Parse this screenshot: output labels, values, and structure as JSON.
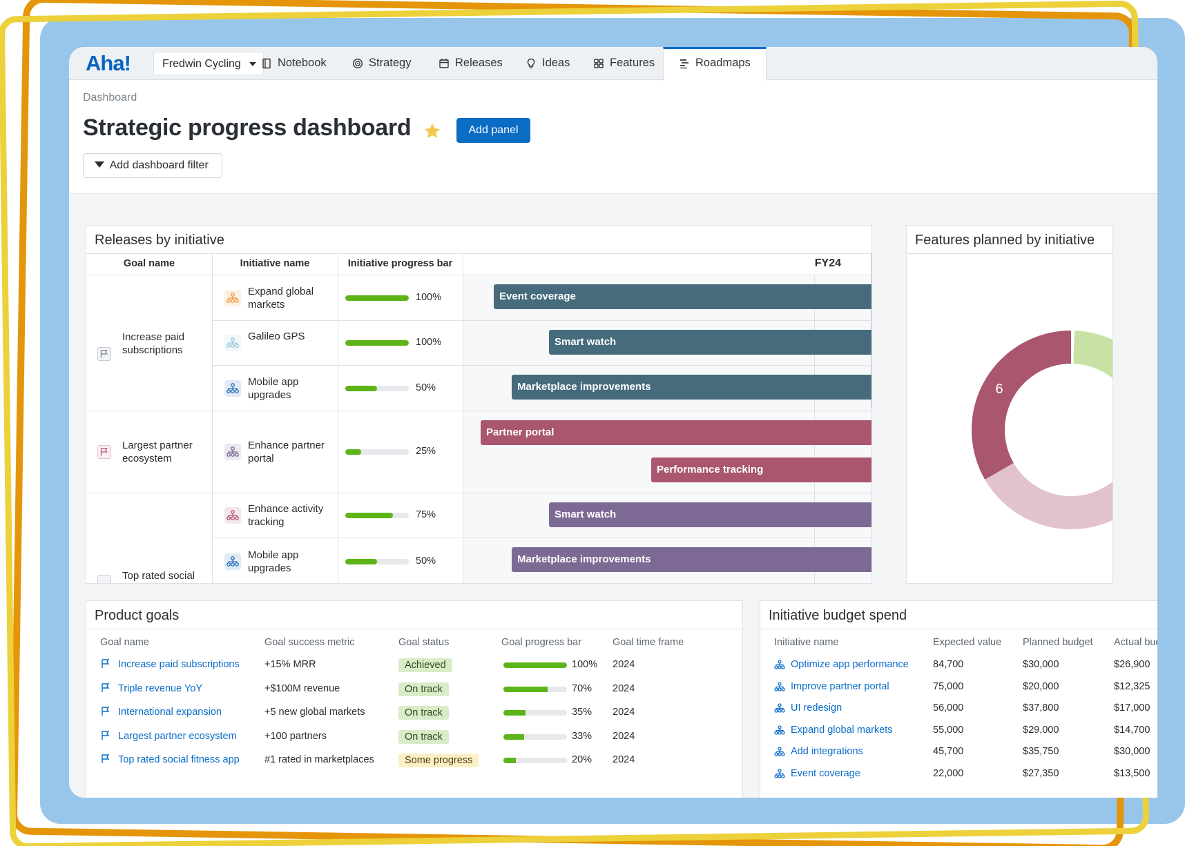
{
  "nav": {
    "logo": "Aha!",
    "workspace": "Fredwin Cycling",
    "items": [
      {
        "label": "Notebook",
        "icon": "notebook-icon"
      },
      {
        "label": "Strategy",
        "icon": "target-icon"
      },
      {
        "label": "Releases",
        "icon": "calendar-icon"
      },
      {
        "label": "Ideas",
        "icon": "lightbulb-icon"
      },
      {
        "label": "Features",
        "icon": "grid-icon"
      },
      {
        "label": "Roadmaps",
        "icon": "roadmap-icon",
        "active": true
      }
    ]
  },
  "header": {
    "breadcrumb": "Dashboard",
    "title": "Strategic progress dashboard",
    "add_panel_label": "Add panel",
    "filter_label": "Add dashboard filter"
  },
  "releases": {
    "title": "Releases by initiative",
    "headers": {
      "goal": "Goal name",
      "initiative": "Initiative name",
      "progress": "Initiative progress bar",
      "timeline": "FY24"
    },
    "goals": [
      {
        "name": "Increase paid subscriptions",
        "flag_color": "#7a8591"
      },
      {
        "name": "Largest partner ecosystem",
        "flag_color": "#b3566e"
      },
      {
        "name": "Top rated social",
        "flag_color": "#7a8591"
      }
    ],
    "rows": [
      {
        "initiative": "Expand global markets",
        "icon_color": "#e89b3c",
        "progress": 100,
        "progress_label": "100%",
        "bars": [
          {
            "label": "Event coverage",
            "color": "#456b7c"
          }
        ]
      },
      {
        "initiative": "Galileo GPS",
        "icon_color": "#9fc6d9",
        "progress": 100,
        "progress_label": "100%",
        "bars": [
          {
            "label": "Smart watch",
            "color": "#456b7c"
          }
        ]
      },
      {
        "initiative": "Mobile app upgrades",
        "icon_color": "#2a71b8",
        "progress": 50,
        "progress_label": "50%",
        "bars": [
          {
            "label": "Marketplace improvements",
            "color": "#456b7c"
          }
        ]
      },
      {
        "initiative": "Enhance partner portal",
        "icon_color": "#7a6890",
        "progress": 25,
        "progress_label": "25%",
        "bars": [
          {
            "label": "Partner portal",
            "color": "#a9566e"
          },
          {
            "label": "Performance tracking",
            "color": "#a9566e"
          }
        ]
      },
      {
        "initiative": "Enhance activity tracking",
        "icon_color": "#b3566e",
        "progress": 75,
        "progress_label": "75%",
        "bars": [
          {
            "label": "Smart watch",
            "color": "#7d6a94"
          }
        ]
      },
      {
        "initiative": "Mobile app upgrades",
        "icon_color": "#2a71b8",
        "progress": 50,
        "progress_label": "50%",
        "bars": [
          {
            "label": "Marketplace improvements",
            "color": "#7d6a94"
          }
        ]
      }
    ]
  },
  "features": {
    "title": "Features planned by initiative",
    "slices": [
      {
        "value": 5,
        "color": "#c8e1a4",
        "label": "5"
      },
      {
        "value": 6,
        "color": "#a9566e",
        "label": "6"
      },
      {
        "value": 5,
        "color": "#e2c2cc",
        "label": ""
      }
    ]
  },
  "goals_table": {
    "title": "Product goals",
    "headers": [
      "Goal name",
      "Goal success metric",
      "Goal status",
      "Goal progress bar",
      "Goal time frame"
    ],
    "rows": [
      {
        "name": "Increase paid subscriptions",
        "metric": "+15% MRR",
        "status": "Achieved",
        "status_kind": "green",
        "progress": 100,
        "progress_label": "100%",
        "timeframe": "2024"
      },
      {
        "name": "Triple revenue YoY",
        "metric": "+$100M revenue",
        "status": "On track",
        "status_kind": "green",
        "progress": 70,
        "progress_label": "70%",
        "timeframe": "2024"
      },
      {
        "name": "International expansion",
        "metric": "+5 new global markets",
        "status": "On track",
        "status_kind": "green",
        "progress": 35,
        "progress_label": "35%",
        "timeframe": "2024"
      },
      {
        "name": "Largest partner ecosystem",
        "metric": "+100 partners",
        "status": "On track",
        "status_kind": "green",
        "progress": 33,
        "progress_label": "33%",
        "timeframe": "2024"
      },
      {
        "name": "Top rated social fitness app",
        "metric": "#1 rated in marketplaces",
        "status": "Some progress",
        "status_kind": "yellow",
        "progress": 20,
        "progress_label": "20%",
        "timeframe": "2024"
      }
    ]
  },
  "budget_table": {
    "title": "Initiative budget spend",
    "headers": [
      "Initiative name",
      "Expected value",
      "Planned budget",
      "Actual budg"
    ],
    "rows": [
      {
        "name": "Optimize app performance",
        "expected": "84,700",
        "planned": "$30,000",
        "actual": "$26,900"
      },
      {
        "name": "Improve partner portal",
        "expected": "75,000",
        "planned": "$20,000",
        "actual": "$12,325"
      },
      {
        "name": "UI redesign",
        "expected": "56,000",
        "planned": "$37,800",
        "actual": "$17,000"
      },
      {
        "name": "Expand global markets",
        "expected": "55,000",
        "planned": "$29,000",
        "actual": "$14,700"
      },
      {
        "name": "Add integrations",
        "expected": "45,700",
        "planned": "$35,750",
        "actual": "$30,000"
      },
      {
        "name": "Event coverage",
        "expected": "22,000",
        "planned": "$27,350",
        "actual": "$13,500"
      }
    ]
  }
}
